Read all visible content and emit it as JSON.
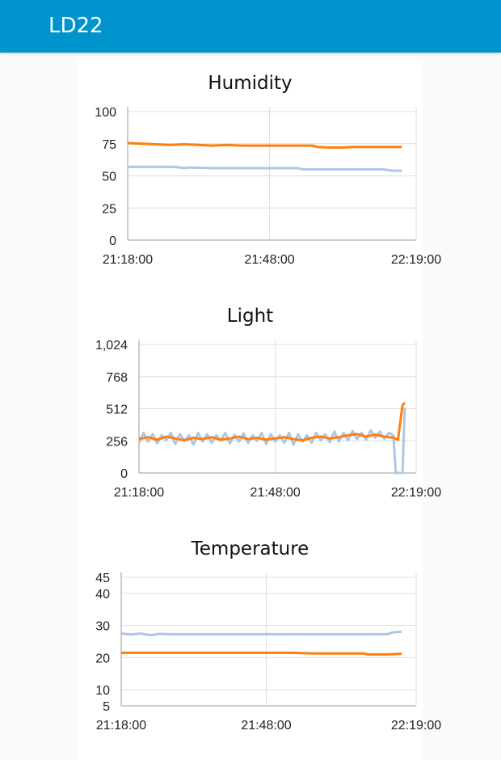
{
  "app": {
    "title": "LD22"
  },
  "colors": {
    "header": "#0094ce",
    "series_a": "#ff7f0e",
    "series_b": "#aec7e8",
    "grid": "#dddddd"
  },
  "chart_data": [
    {
      "type": "line",
      "title": "Humidity",
      "x_ticks": [
        "21:18:00",
        "21:48:00",
        "22:19:00"
      ],
      "y_ticks": [
        0,
        25,
        50,
        75,
        100
      ],
      "y_tick_labels": [
        "0",
        "25",
        "50",
        "75",
        "100"
      ],
      "ylim": [
        0,
        100
      ],
      "xlim": [
        0,
        61
      ],
      "series": [
        {
          "color": "#ff7f0e",
          "x": [
            0,
            3,
            6,
            9,
            12,
            15,
            18,
            21,
            24,
            27,
            30,
            33,
            36,
            39,
            40,
            43,
            45,
            48,
            51,
            54,
            57,
            58
          ],
          "values": [
            75.5,
            75,
            74.5,
            74,
            74.5,
            74,
            73.5,
            74,
            73.5,
            73.5,
            73.5,
            73.5,
            73.5,
            73.5,
            72.5,
            72,
            72,
            72.5,
            72.5,
            72.5,
            72.5,
            72.5
          ]
        },
        {
          "color": "#aec7e8",
          "x": [
            0,
            5,
            10,
            12,
            13,
            18,
            24,
            30,
            36,
            37,
            42,
            48,
            54,
            56,
            58
          ],
          "values": [
            57,
            57,
            57,
            56,
            56.5,
            56,
            56,
            56,
            56,
            55,
            55,
            55,
            55,
            54,
            54
          ]
        }
      ]
    },
    {
      "type": "line",
      "title": "Light",
      "x_ticks": [
        "21:18:00",
        "21:48:00",
        "22:19:00"
      ],
      "y_ticks": [
        0,
        256,
        512,
        768,
        1024
      ],
      "y_tick_labels": [
        "0",
        "256",
        "512",
        "768",
        "1,024"
      ],
      "ylim": [
        0,
        1024
      ],
      "xlim": [
        0,
        61
      ],
      "series": [
        {
          "color": "#ff7f0e",
          "x": [
            0,
            2,
            4,
            6,
            8,
            10,
            12,
            14,
            16,
            18,
            20,
            22,
            24,
            26,
            28,
            30,
            32,
            34,
            36,
            38,
            40,
            42,
            44,
            46,
            48,
            50,
            52,
            54,
            56,
            57,
            58,
            58.5
          ],
          "values": [
            270,
            285,
            265,
            290,
            275,
            260,
            280,
            270,
            285,
            265,
            275,
            290,
            270,
            280,
            265,
            275,
            285,
            270,
            260,
            280,
            290,
            275,
            285,
            300,
            310,
            290,
            305,
            290,
            280,
            265,
            540,
            560
          ]
        },
        {
          "color": "#aec7e8",
          "x": [
            0,
            1,
            2,
            3,
            4,
            5,
            6,
            7,
            8,
            9,
            10,
            11,
            12,
            13,
            14,
            15,
            16,
            17,
            18,
            19,
            20,
            21,
            22,
            23,
            24,
            25,
            26,
            27,
            28,
            29,
            30,
            31,
            32,
            33,
            34,
            35,
            36,
            37,
            38,
            39,
            40,
            41,
            42,
            43,
            44,
            45,
            46,
            47,
            48,
            49,
            50,
            51,
            52,
            53,
            54,
            55,
            56,
            56.5,
            57,
            57.5,
            58,
            58.5
          ],
          "values": [
            240,
            320,
            250,
            310,
            235,
            300,
            260,
            320,
            230,
            310,
            255,
            300,
            225,
            320,
            250,
            310,
            240,
            300,
            260,
            320,
            235,
            305,
            250,
            315,
            240,
            300,
            255,
            320,
            230,
            310,
            250,
            300,
            240,
            320,
            225,
            310,
            250,
            300,
            240,
            320,
            260,
            310,
            245,
            330,
            250,
            320,
            260,
            335,
            270,
            320,
            265,
            340,
            280,
            330,
            270,
            320,
            300,
            0,
            0,
            0,
            0,
            520
          ]
        }
      ]
    },
    {
      "type": "line",
      "title": "Temperature",
      "x_ticks": [
        "21:18:00",
        "21:48:00",
        "22:19:00"
      ],
      "y_ticks": [
        5,
        10,
        20,
        30,
        40,
        45
      ],
      "y_tick_labels": [
        "5",
        "10",
        "20",
        "30",
        "40",
        "45"
      ],
      "ylim": [
        5,
        45
      ],
      "xlim": [
        0,
        61
      ],
      "series": [
        {
          "color": "#ff7f0e",
          "x": [
            0,
            5,
            10,
            15,
            20,
            25,
            30,
            35,
            40,
            45,
            50,
            51,
            55,
            58
          ],
          "values": [
            21.5,
            21.5,
            21.5,
            21.5,
            21.5,
            21.5,
            21.5,
            21.5,
            21.3,
            21.3,
            21.3,
            21,
            21,
            21.2
          ]
        },
        {
          "color": "#aec7e8",
          "x": [
            0,
            2,
            4,
            6,
            8,
            10,
            15,
            20,
            25,
            30,
            35,
            40,
            45,
            50,
            55,
            56,
            57,
            58
          ],
          "values": [
            27.5,
            27.2,
            27.5,
            27,
            27.4,
            27.3,
            27.3,
            27.3,
            27.3,
            27.3,
            27.3,
            27.3,
            27.3,
            27.3,
            27.3,
            27.8,
            28,
            28
          ]
        }
      ]
    }
  ]
}
